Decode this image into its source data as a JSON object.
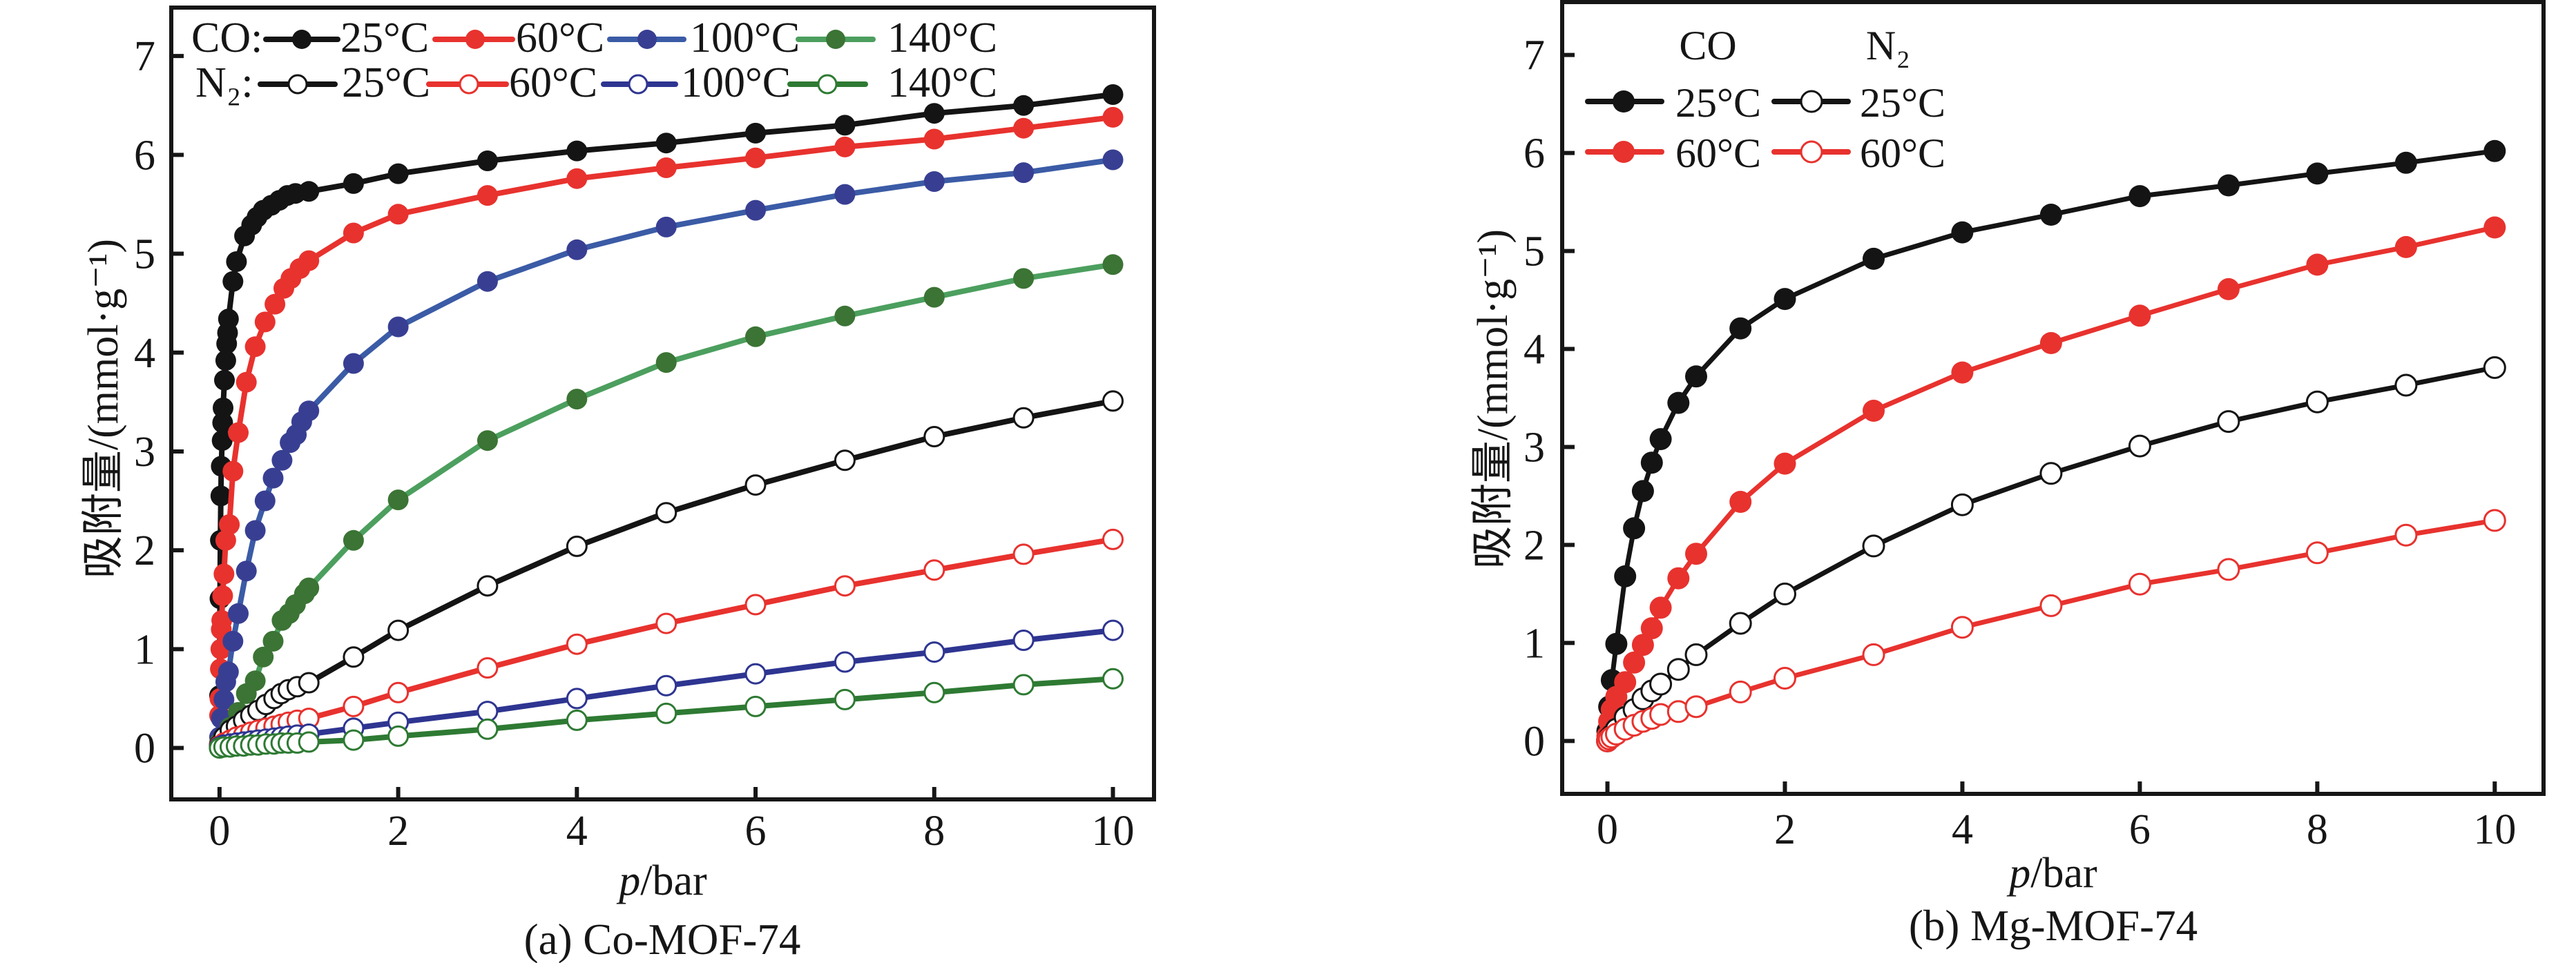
{
  "chart_data": [
    {
      "type": "line",
      "title": "(a) Co-MOF-74",
      "xlabel": "p/bar",
      "xlabel_parts": [
        "p",
        "/bar"
      ],
      "ylabel": "吸附量/(mmol·g⁻¹)",
      "xlim": [
        -0.54,
        10.46
      ],
      "ylim": [
        -0.52,
        7.49
      ],
      "xticks": [
        0,
        2,
        4,
        6,
        8,
        10
      ],
      "yticks": [
        0,
        1,
        2,
        3,
        4,
        5,
        6,
        7
      ],
      "grid": false,
      "legend": {
        "placement": "top-left",
        "groups": [
          {
            "label": "CO:",
            "entries": [
              {
                "label": "25°C",
                "series_index": 0
              },
              {
                "label": "60°C",
                "series_index": 1
              },
              {
                "label": "100°C",
                "series_index": 2
              },
              {
                "label": "140°C",
                "series_index": 3
              }
            ]
          },
          {
            "label": "N₂:",
            "entries": [
              {
                "label": "25°C",
                "series_index": 4
              },
              {
                "label": "60°C",
                "series_index": 5
              },
              {
                "label": "100°C",
                "series_index": 6
              },
              {
                "label": "140°C",
                "series_index": 7
              }
            ]
          }
        ]
      },
      "series": [
        {
          "name": "CO 25°C",
          "gas": "CO",
          "temperature": "25°C",
          "marker": "filled",
          "color": "#141414",
          "line_color": "#141414",
          "x": [
            0,
            0.005,
            0.01,
            0.015,
            0.02,
            0.03,
            0.035,
            0.04,
            0.055,
            0.07,
            0.08,
            0.09,
            0.1,
            0.15,
            0.19,
            0.28,
            0.36,
            0.42,
            0.49,
            0.58,
            0.67,
            0.76,
            0.85,
            1.0,
            1.5,
            2,
            3,
            4,
            5,
            6,
            7,
            8,
            9,
            10
          ],
          "y": [
            0.53,
            1.51,
            2.1,
            2.55,
            2.85,
            3.11,
            3.29,
            3.44,
            3.72,
            3.92,
            4.09,
            4.2,
            4.34,
            4.72,
            4.92,
            5.18,
            5.29,
            5.37,
            5.44,
            5.49,
            5.54,
            5.59,
            5.61,
            5.63,
            5.71,
            5.81,
            5.94,
            6.04,
            6.12,
            6.22,
            6.3,
            6.42,
            6.5,
            6.61
          ]
        },
        {
          "name": "CO 60°C",
          "gas": "CO",
          "temperature": "60°C",
          "marker": "filled",
          "color": "#e8322e",
          "line_color": "#e8322e",
          "x": [
            0,
            0.005,
            0.01,
            0.015,
            0.02,
            0.025,
            0.035,
            0.05,
            0.07,
            0.11,
            0.15,
            0.21,
            0.3,
            0.4,
            0.51,
            0.62,
            0.72,
            0.8,
            0.9,
            1.0,
            1.5,
            2,
            3,
            4,
            5,
            6,
            7,
            8,
            9,
            10
          ],
          "y": [
            0.33,
            0.5,
            0.8,
            1.0,
            1.2,
            1.29,
            1.54,
            1.76,
            2.1,
            2.26,
            2.8,
            3.19,
            3.7,
            4.06,
            4.31,
            4.49,
            4.65,
            4.75,
            4.85,
            4.93,
            5.21,
            5.4,
            5.59,
            5.76,
            5.87,
            5.97,
            6.08,
            6.16,
            6.27,
            6.38
          ]
        },
        {
          "name": "CO 100°C",
          "gas": "CO",
          "temperature": "100°C",
          "marker": "filled",
          "color": "#383f92",
          "line_color": "#3b5ba6",
          "x": [
            0,
            0.02,
            0.05,
            0.07,
            0.1,
            0.15,
            0.21,
            0.3,
            0.4,
            0.51,
            0.6,
            0.7,
            0.79,
            0.86,
            0.92,
            1.0,
            1.5,
            2,
            3,
            4,
            5,
            6,
            7,
            8,
            9,
            10
          ],
          "y": [
            0.11,
            0.3,
            0.49,
            0.67,
            0.77,
            1.08,
            1.36,
            1.79,
            2.2,
            2.5,
            2.73,
            2.91,
            3.09,
            3.17,
            3.3,
            3.41,
            3.89,
            4.26,
            4.72,
            5.04,
            5.27,
            5.44,
            5.6,
            5.73,
            5.82,
            5.95
          ]
        },
        {
          "name": "CO 140°C",
          "gas": "CO",
          "temperature": "140°C",
          "marker": "filled",
          "color": "#3b7434",
          "line_color": "#4c9f5e",
          "x": [
            0,
            0.05,
            0.12,
            0.21,
            0.3,
            0.4,
            0.49,
            0.6,
            0.7,
            0.78,
            0.85,
            0.95,
            1.0,
            1.5,
            2,
            3,
            4,
            5,
            6,
            7,
            8,
            9,
            10
          ],
          "y": [
            0.05,
            0.11,
            0.21,
            0.36,
            0.55,
            0.68,
            0.92,
            1.08,
            1.29,
            1.36,
            1.45,
            1.56,
            1.62,
            2.1,
            2.51,
            3.11,
            3.53,
            3.9,
            4.16,
            4.37,
            4.56,
            4.75,
            4.89
          ]
        },
        {
          "name": "N₂ 25°C",
          "gas": "N₂",
          "temperature": "25°C",
          "marker": "open",
          "color": "#141414",
          "line_color": "#141414",
          "x": [
            0,
            0.05,
            0.12,
            0.19,
            0.27,
            0.35,
            0.43,
            0.52,
            0.61,
            0.69,
            0.77,
            0.87,
            1.0,
            1.5,
            2,
            3,
            4,
            5,
            6,
            7,
            8,
            9,
            10
          ],
          "y": [
            0.03,
            0.11,
            0.18,
            0.22,
            0.28,
            0.33,
            0.38,
            0.44,
            0.5,
            0.55,
            0.59,
            0.62,
            0.66,
            0.92,
            1.19,
            1.64,
            2.04,
            2.38,
            2.66,
            2.91,
            3.15,
            3.34,
            3.51
          ]
        },
        {
          "name": "N₂ 60°C",
          "gas": "N₂",
          "temperature": "60°C",
          "marker": "open",
          "color": "#e8322e",
          "line_color": "#e8322e",
          "x": [
            0,
            0.05,
            0.12,
            0.19,
            0.27,
            0.35,
            0.43,
            0.52,
            0.61,
            0.69,
            0.77,
            0.87,
            1.0,
            1.5,
            2,
            3,
            4,
            5,
            6,
            7,
            8,
            9,
            10
          ],
          "y": [
            0.02,
            0.05,
            0.08,
            0.11,
            0.13,
            0.16,
            0.18,
            0.2,
            0.22,
            0.24,
            0.26,
            0.28,
            0.3,
            0.42,
            0.56,
            0.81,
            1.05,
            1.26,
            1.45,
            1.64,
            1.8,
            1.96,
            2.11
          ]
        },
        {
          "name": "N₂ 100°C",
          "gas": "N₂",
          "temperature": "100°C",
          "marker": "open",
          "color": "#2e3591",
          "line_color": "#2e3591",
          "x": [
            0,
            0.05,
            0.12,
            0.19,
            0.27,
            0.35,
            0.43,
            0.52,
            0.61,
            0.69,
            0.77,
            0.87,
            1.0,
            1.5,
            2,
            3,
            4,
            5,
            6,
            7,
            8,
            9,
            10
          ],
          "y": [
            0.01,
            0.03,
            0.04,
            0.05,
            0.06,
            0.07,
            0.08,
            0.09,
            0.1,
            0.11,
            0.12,
            0.13,
            0.14,
            0.2,
            0.26,
            0.37,
            0.5,
            0.63,
            0.75,
            0.87,
            0.97,
            1.09,
            1.19
          ]
        },
        {
          "name": "N₂ 140°C",
          "gas": "N₂",
          "temperature": "140°C",
          "marker": "open",
          "color": "#2e7a33",
          "line_color": "#2e7a33",
          "x": [
            0,
            0.05,
            0.12,
            0.19,
            0.27,
            0.35,
            0.43,
            0.52,
            0.61,
            0.69,
            0.77,
            0.87,
            1.0,
            1.5,
            2,
            3,
            4,
            5,
            6,
            7,
            8,
            9,
            10
          ],
          "y": [
            0.0,
            0.01,
            0.01,
            0.02,
            0.02,
            0.03,
            0.03,
            0.04,
            0.04,
            0.05,
            0.05,
            0.05,
            0.06,
            0.08,
            0.12,
            0.19,
            0.28,
            0.35,
            0.42,
            0.49,
            0.56,
            0.64,
            0.7
          ]
        }
      ]
    },
    {
      "type": "line",
      "title": "(b) Mg-MOF-74",
      "xlabel": "p/bar",
      "xlabel_parts": [
        "p",
        "/bar"
      ],
      "ylabel": "吸附量/(mmol·g⁻¹)",
      "xlim": [
        -0.51,
        10.55
      ],
      "ylim": [
        -0.54,
        7.54
      ],
      "xticks": [
        0,
        2,
        4,
        6,
        8,
        10
      ],
      "yticks": [
        0,
        1,
        2,
        3,
        4,
        5,
        6,
        7
      ],
      "grid": false,
      "legend": {
        "placement": "top-left",
        "groups": [
          {
            "label": "CO",
            "entries": [
              {
                "label": "25°C",
                "series_index": 0
              },
              {
                "label": "60°C",
                "series_index": 1
              }
            ]
          },
          {
            "label": "N₂",
            "entries": [
              {
                "label": "25°C",
                "series_index": 2
              },
              {
                "label": "60°C",
                "series_index": 3
              }
            ]
          }
        ]
      },
      "series": [
        {
          "name": "CO 25°C",
          "gas": "CO",
          "temperature": "25°C",
          "marker": "filled",
          "color": "#141414",
          "line_color": "#141414",
          "x": [
            0,
            0.02,
            0.05,
            0.1,
            0.2,
            0.3,
            0.4,
            0.5,
            0.6,
            0.8,
            1.0,
            1.5,
            2,
            3,
            4,
            5,
            6,
            7,
            8,
            9,
            10
          ],
          "y": [
            0.1,
            0.35,
            0.62,
            0.99,
            1.68,
            2.17,
            2.55,
            2.84,
            3.08,
            3.45,
            3.72,
            4.21,
            4.51,
            4.92,
            5.19,
            5.37,
            5.56,
            5.67,
            5.79,
            5.9,
            6.02
          ]
        },
        {
          "name": "CO 60°C",
          "gas": "CO",
          "temperature": "60°C",
          "marker": "filled",
          "color": "#e8322e",
          "line_color": "#e8322e",
          "x": [
            0,
            0.02,
            0.05,
            0.1,
            0.2,
            0.3,
            0.4,
            0.5,
            0.6,
            0.8,
            1.0,
            1.5,
            2,
            3,
            4,
            5,
            6,
            7,
            8,
            9,
            10
          ],
          "y": [
            0.05,
            0.2,
            0.32,
            0.45,
            0.6,
            0.8,
            0.98,
            1.15,
            1.36,
            1.66,
            1.91,
            2.44,
            2.83,
            3.37,
            3.76,
            4.06,
            4.34,
            4.61,
            4.86,
            5.04,
            5.24
          ]
        },
        {
          "name": "N₂ 25°C",
          "gas": "N₂",
          "temperature": "25°C",
          "marker": "open",
          "color": "#141414",
          "line_color": "#141414",
          "x": [
            0,
            0.02,
            0.05,
            0.1,
            0.2,
            0.3,
            0.4,
            0.5,
            0.6,
            0.8,
            1.0,
            1.5,
            2,
            3,
            4,
            5,
            6,
            7,
            8,
            9,
            10
          ],
          "y": [
            0.0,
            0.03,
            0.06,
            0.12,
            0.24,
            0.32,
            0.43,
            0.51,
            0.58,
            0.73,
            0.88,
            1.2,
            1.5,
            1.99,
            2.41,
            2.73,
            3.01,
            3.26,
            3.46,
            3.63,
            3.81
          ]
        },
        {
          "name": "N₂ 60°C",
          "gas": "N₂",
          "temperature": "60°C",
          "marker": "open",
          "color": "#e8322e",
          "line_color": "#e8322e",
          "x": [
            0,
            0.02,
            0.05,
            0.1,
            0.2,
            0.3,
            0.4,
            0.5,
            0.6,
            0.8,
            1.0,
            1.5,
            2,
            3,
            4,
            5,
            6,
            7,
            8,
            9,
            10
          ],
          "y": [
            0.0,
            0.02,
            0.04,
            0.07,
            0.12,
            0.16,
            0.2,
            0.23,
            0.27,
            0.3,
            0.35,
            0.5,
            0.64,
            0.88,
            1.16,
            1.38,
            1.6,
            1.75,
            1.92,
            2.1,
            2.25
          ]
        }
      ]
    }
  ]
}
